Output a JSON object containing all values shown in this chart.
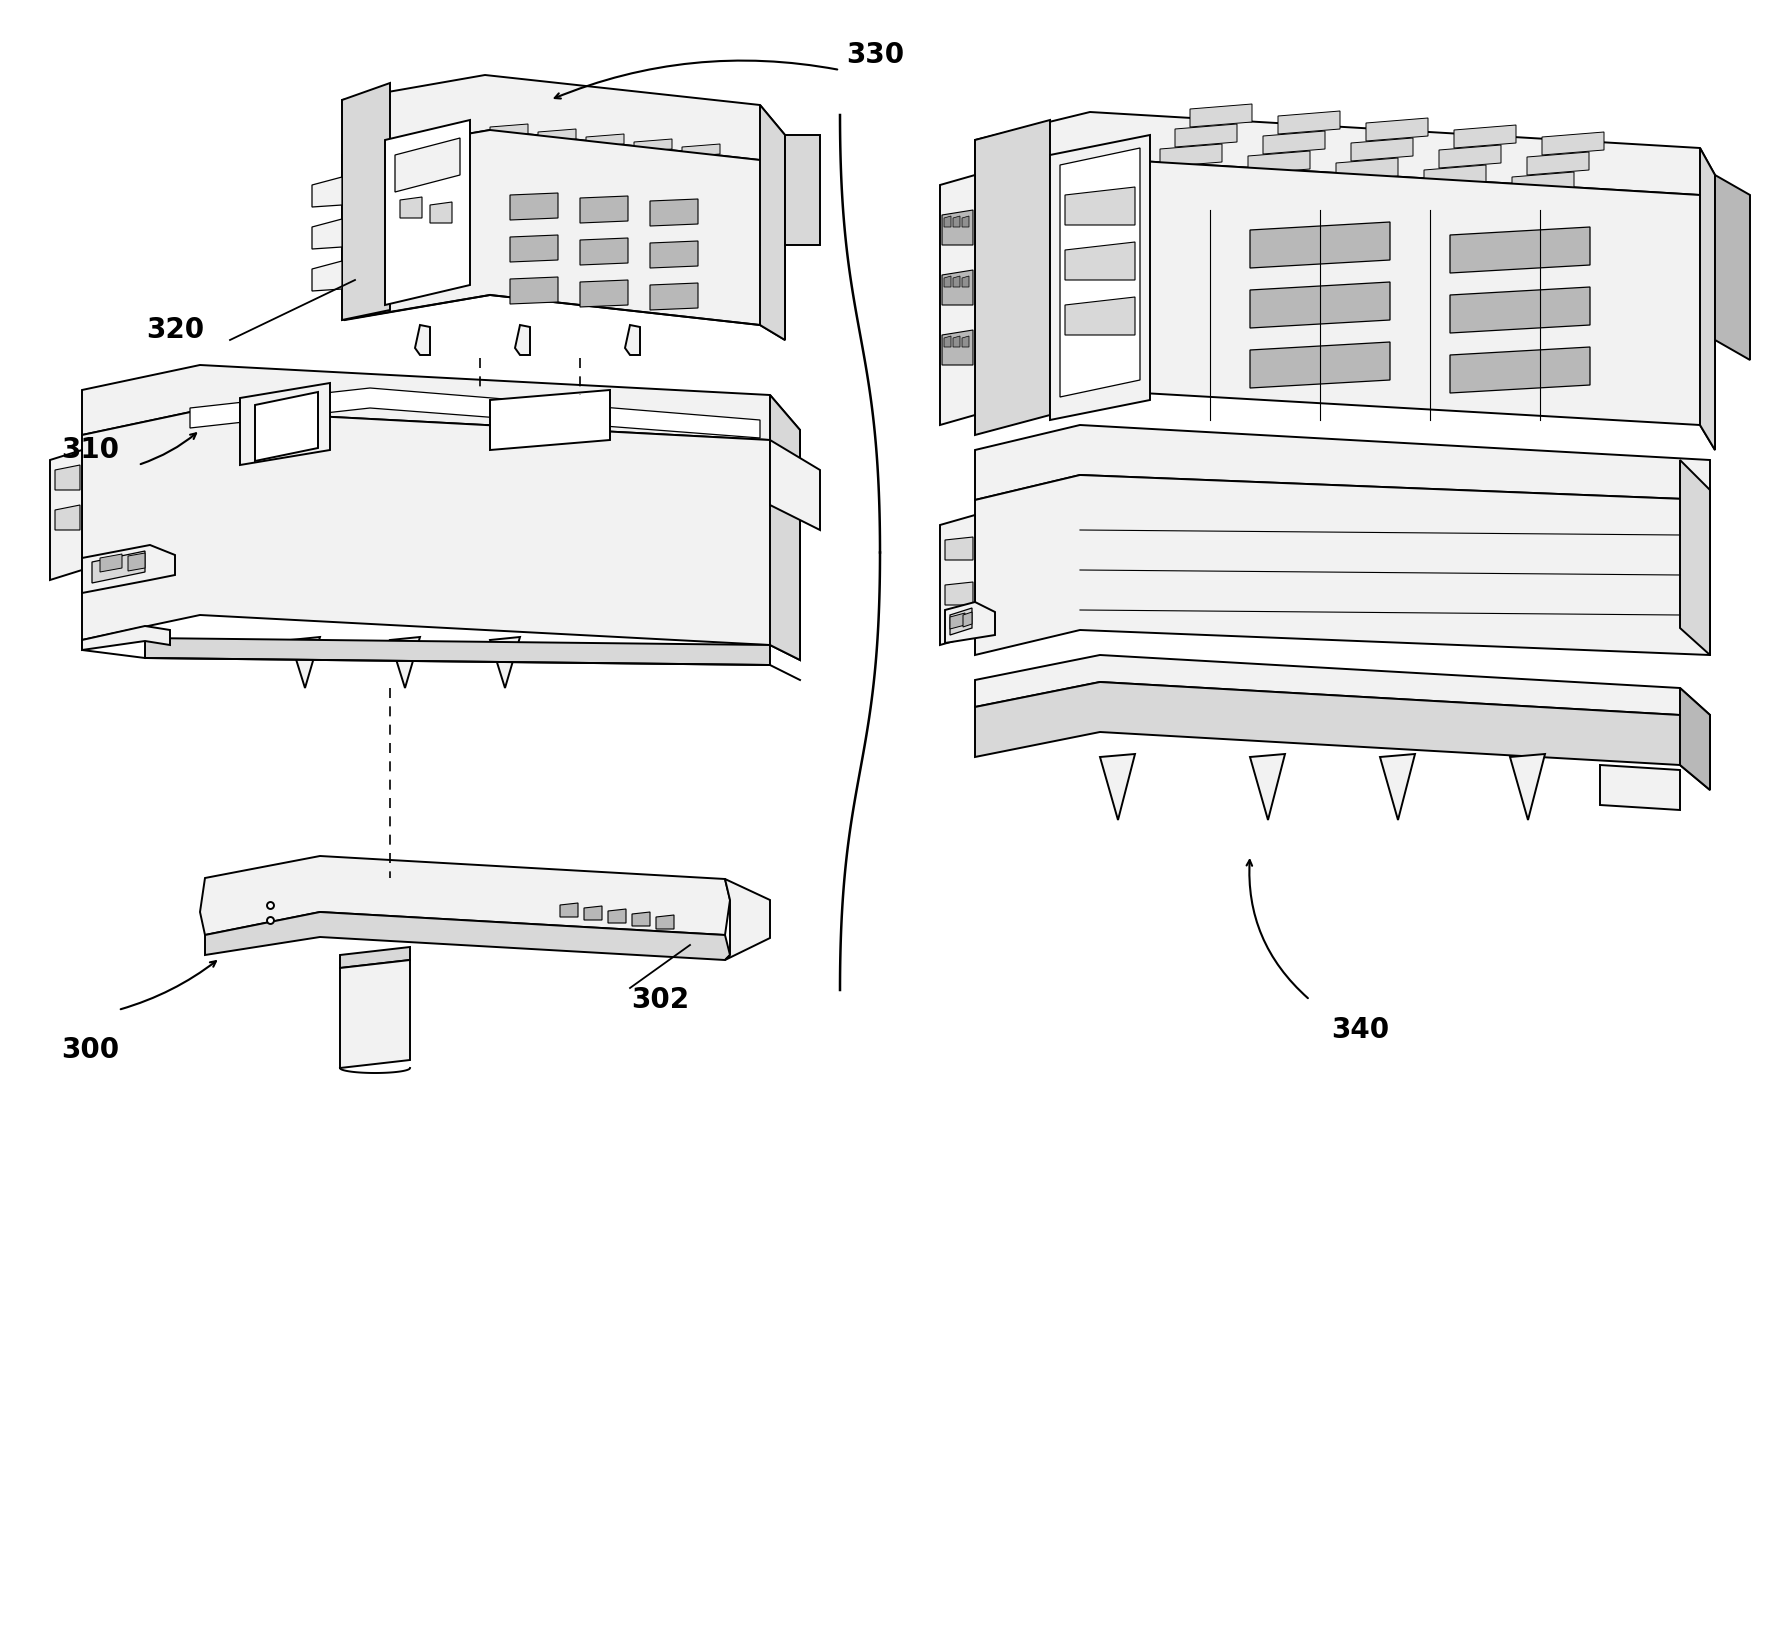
{
  "background_color": "#ffffff",
  "line_color": "#000000",
  "lw": 1.4,
  "lw_thin": 0.8,
  "lw_thick": 2.0,
  "figsize": [
    17.81,
    16.48
  ],
  "dpi": 100,
  "label_fontsize": 20,
  "label_fontweight": "bold",
  "gray_light": "#f2f2f2",
  "gray_mid": "#d8d8d8",
  "gray_dark": "#b8b8b8",
  "gray_very_dark": "#909090"
}
